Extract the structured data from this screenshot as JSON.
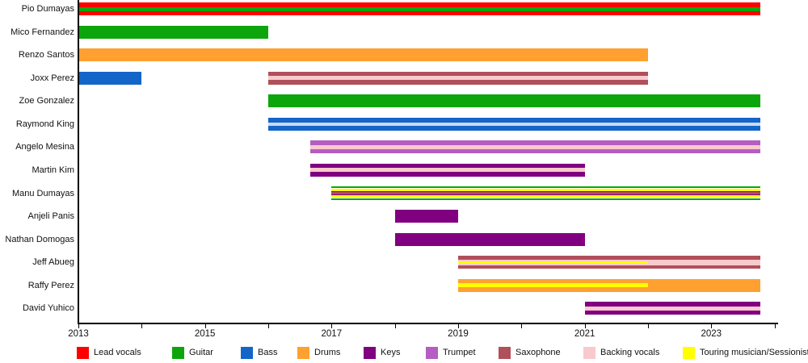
{
  "chart_data": {
    "type": "bar",
    "subtype": "gantt-timeline",
    "title": "",
    "xlabel": "",
    "ylabel": "",
    "xlim": [
      2013,
      2024.06
    ],
    "present_end": 2023.78,
    "axis": {
      "tick_years": [
        2013,
        2014,
        2015,
        2016,
        2017,
        2018,
        2019,
        2020,
        2021,
        2022,
        2023,
        2024
      ],
      "label_years": [
        2013,
        2015,
        2017,
        2019,
        2021,
        2023
      ],
      "tick_labels": [
        "2013",
        "2015",
        "2017",
        "2019",
        "2021",
        "2023"
      ]
    },
    "legend": [
      {
        "label": "Lead vocals",
        "color": "#FF0000"
      },
      {
        "label": "Guitar",
        "color": "#0CA60C"
      },
      {
        "label": "Bass",
        "color": "#1465C8"
      },
      {
        "label": "Drums",
        "color": "#FFA030"
      },
      {
        "label": "Keys",
        "color": "#800080"
      },
      {
        "label": "Trumpet",
        "color": "#B45EC1"
      },
      {
        "label": "Saxophone",
        "color": "#B0505A"
      },
      {
        "label": "Backing vocals",
        "color": "#F9CACD"
      },
      {
        "label": "Touring musician/Sessionist",
        "color": "#FFFF00"
      }
    ],
    "members": [
      {
        "name": "Pio Dumayas",
        "bars": [
          {
            "role": "Lead vocals",
            "start": 2013,
            "end": "present",
            "h": 16
          },
          {
            "role": "Guitar",
            "start": 2013,
            "end": "present",
            "h": 5
          }
        ]
      },
      {
        "name": "Mico Fernandez",
        "bars": [
          {
            "role": "Guitar",
            "start": 2013,
            "end": 2016,
            "h": 16
          }
        ]
      },
      {
        "name": "Renzo Santos",
        "bars": [
          {
            "role": "Drums",
            "start": 2013,
            "end": 2022,
            "h": 16
          }
        ]
      },
      {
        "name": "Joxx Perez",
        "bars": [
          {
            "role": "Bass",
            "start": 2013,
            "end": 2014,
            "h": 16
          },
          {
            "role": "Saxophone",
            "start": 2016,
            "end": 2022,
            "h": 16
          },
          {
            "role": "Backing vocals",
            "start": 2016,
            "end": 2022,
            "h": 5
          }
        ]
      },
      {
        "name": "Zoe Gonzalez",
        "bars": [
          {
            "role": "Guitar",
            "start": 2016,
            "end": "present",
            "h": 16
          }
        ]
      },
      {
        "name": "Raymond King",
        "bars": [
          {
            "role": "Bass",
            "start": 2016,
            "end": "present",
            "h": 16
          },
          {
            "role": "Backing vocals",
            "start": 2016,
            "end": "present",
            "h": 4,
            "color": "#CDD9EF"
          }
        ]
      },
      {
        "name": "Angelo Mesina",
        "bars": [
          {
            "role": "Trumpet",
            "start": 2016.67,
            "end": "present",
            "h": 16
          },
          {
            "role": "Backing vocals",
            "start": 2016.67,
            "end": "present",
            "h": 5
          }
        ]
      },
      {
        "name": "Martin Kim",
        "bars": [
          {
            "role": "Keys",
            "start": 2016.67,
            "end": 2021,
            "h": 16
          },
          {
            "role": "Backing vocals",
            "start": 2016.67,
            "end": 2021,
            "h": 5
          }
        ]
      },
      {
        "name": "Manu Dumayas",
        "bars": [
          {
            "role": "Guitar",
            "start": 2017,
            "end": "present",
            "h": 17
          },
          {
            "role": "gap",
            "start": 2017,
            "end": "present",
            "h": 13,
            "color": "#FFFFFF"
          },
          {
            "role": "Touring musician/Sessionist",
            "start": 2017,
            "end": "present",
            "h": 11
          },
          {
            "role": "Keys",
            "start": 2017,
            "end": "present",
            "h": 5
          },
          {
            "role": "Saxophone",
            "start": 2017,
            "end": "present",
            "h": 3
          }
        ]
      },
      {
        "name": "Anjeli Panis",
        "bars": [
          {
            "role": "Keys",
            "start": 2018,
            "end": 2019,
            "h": 16
          }
        ]
      },
      {
        "name": "Nathan Domogas",
        "bars": [
          {
            "role": "Keys",
            "start": 2018,
            "end": 2021,
            "h": 16
          }
        ]
      },
      {
        "name": "Jeff Abueg",
        "bars": [
          {
            "role": "Saxophone",
            "start": 2019,
            "end": "present",
            "h": 16
          },
          {
            "role": "Backing vocals",
            "start": 2019,
            "end": "present",
            "h": 7
          },
          {
            "role": "Touring musician/Sessionist",
            "start": 2019,
            "end": 2022,
            "h": 3
          }
        ]
      },
      {
        "name": "Raffy Perez",
        "bars": [
          {
            "role": "Drums",
            "start": 2019,
            "end": "present",
            "h": 16
          },
          {
            "role": "Touring musician/Sessionist",
            "start": 2019,
            "end": 2022,
            "h": 5
          }
        ]
      },
      {
        "name": "David Yuhico",
        "bars": [
          {
            "role": "Keys",
            "start": 2021,
            "end": "present",
            "h": 16
          },
          {
            "role": "Backing vocals",
            "start": 2021,
            "end": "present",
            "h": 5
          }
        ]
      }
    ]
  }
}
